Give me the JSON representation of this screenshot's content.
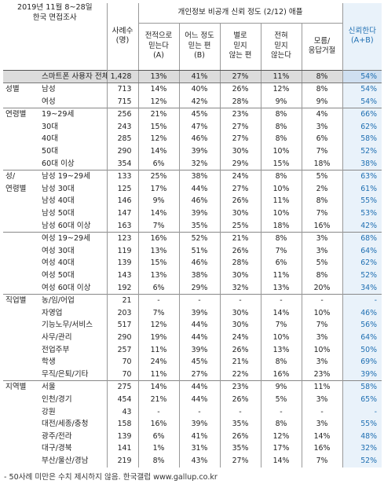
{
  "header": {
    "survey_line1": "2019년 11월 8~28일",
    "survey_line2": "한국 면접조사",
    "n_label_1": "사례수",
    "n_label_2": "(명)",
    "question": "개인정보 비공개 신뢰 정도 (2/12) 애플",
    "col_a": [
      "전적으로",
      "믿는다",
      "(A)"
    ],
    "col_b": [
      "어느 정도",
      "믿는 편",
      "(B)"
    ],
    "col_c": [
      "별로",
      "믿지",
      "않는 편"
    ],
    "col_d": [
      "전혀",
      "믿지",
      "않는다"
    ],
    "col_e": [
      "모름/",
      "응답거절"
    ],
    "col_trust": [
      "신뢰한다",
      "(A+B)"
    ]
  },
  "rows": [
    {
      "g": "",
      "l": "스마트폰 사용자 전체",
      "n": "1,428",
      "a": "13%",
      "b": "41%",
      "c": "27%",
      "d": "11%",
      "e": "8%",
      "t": "54%",
      "cls": "total"
    },
    {
      "g": "성별",
      "l": "남성",
      "n": "713",
      "a": "14%",
      "b": "40%",
      "c": "26%",
      "d": "12%",
      "e": "8%",
      "t": "54%",
      "cls": "sec"
    },
    {
      "g": "",
      "l": "여성",
      "n": "715",
      "a": "12%",
      "b": "42%",
      "c": "28%",
      "d": "9%",
      "e": "9%",
      "t": "54%",
      "cls": ""
    },
    {
      "g": "연령별",
      "l": "19~29세",
      "n": "256",
      "a": "21%",
      "b": "45%",
      "c": "23%",
      "d": "8%",
      "e": "4%",
      "t": "66%",
      "cls": "sec"
    },
    {
      "g": "",
      "l": "30대",
      "n": "243",
      "a": "15%",
      "b": "47%",
      "c": "27%",
      "d": "8%",
      "e": "3%",
      "t": "62%",
      "cls": ""
    },
    {
      "g": "",
      "l": "40대",
      "n": "285",
      "a": "12%",
      "b": "46%",
      "c": "27%",
      "d": "8%",
      "e": "6%",
      "t": "58%",
      "cls": ""
    },
    {
      "g": "",
      "l": "50대",
      "n": "290",
      "a": "14%",
      "b": "39%",
      "c": "30%",
      "d": "10%",
      "e": "7%",
      "t": "52%",
      "cls": ""
    },
    {
      "g": "",
      "l": "60대 이상",
      "n": "354",
      "a": "6%",
      "b": "32%",
      "c": "29%",
      "d": "15%",
      "e": "18%",
      "t": "38%",
      "cls": ""
    },
    {
      "g": "성/",
      "l": "남성 19~29세",
      "n": "133",
      "a": "25%",
      "b": "38%",
      "c": "24%",
      "d": "8%",
      "e": "5%",
      "t": "63%",
      "cls": "sec"
    },
    {
      "g": "연령별",
      "l": "남성 30대",
      "n": "125",
      "a": "17%",
      "b": "44%",
      "c": "27%",
      "d": "10%",
      "e": "2%",
      "t": "61%",
      "cls": ""
    },
    {
      "g": "",
      "l": "남성 40대",
      "n": "146",
      "a": "9%",
      "b": "46%",
      "c": "26%",
      "d": "11%",
      "e": "8%",
      "t": "55%",
      "cls": ""
    },
    {
      "g": "",
      "l": "남성 50대",
      "n": "147",
      "a": "14%",
      "b": "39%",
      "c": "30%",
      "d": "10%",
      "e": "7%",
      "t": "53%",
      "cls": ""
    },
    {
      "g": "",
      "l": "남성 60대 이상",
      "n": "163",
      "a": "7%",
      "b": "35%",
      "c": "25%",
      "d": "18%",
      "e": "16%",
      "t": "42%",
      "cls": ""
    },
    {
      "g": "",
      "l": "여성 19~29세",
      "n": "123",
      "a": "16%",
      "b": "52%",
      "c": "21%",
      "d": "8%",
      "e": "3%",
      "t": "68%",
      "cls": "sec"
    },
    {
      "g": "",
      "l": "여성 30대",
      "n": "119",
      "a": "13%",
      "b": "51%",
      "c": "26%",
      "d": "7%",
      "e": "3%",
      "t": "64%",
      "cls": ""
    },
    {
      "g": "",
      "l": "여성 40대",
      "n": "139",
      "a": "15%",
      "b": "46%",
      "c": "28%",
      "d": "6%",
      "e": "5%",
      "t": "62%",
      "cls": ""
    },
    {
      "g": "",
      "l": "여성 50대",
      "n": "143",
      "a": "13%",
      "b": "38%",
      "c": "30%",
      "d": "11%",
      "e": "8%",
      "t": "52%",
      "cls": ""
    },
    {
      "g": "",
      "l": "여성 60대 이상",
      "n": "192",
      "a": "6%",
      "b": "29%",
      "c": "32%",
      "d": "13%",
      "e": "20%",
      "t": "34%",
      "cls": ""
    },
    {
      "g": "직업별",
      "l": "농/임/어업",
      "n": "21",
      "a": "-",
      "b": "-",
      "c": "-",
      "d": "-",
      "e": "-",
      "t": "-",
      "cls": "sec"
    },
    {
      "g": "",
      "l": "자영업",
      "n": "203",
      "a": "7%",
      "b": "39%",
      "c": "30%",
      "d": "14%",
      "e": "10%",
      "t": "46%",
      "cls": ""
    },
    {
      "g": "",
      "l": "기능노무/서비스",
      "n": "517",
      "a": "12%",
      "b": "44%",
      "c": "30%",
      "d": "7%",
      "e": "7%",
      "t": "56%",
      "cls": ""
    },
    {
      "g": "",
      "l": "사무/관리",
      "n": "290",
      "a": "19%",
      "b": "44%",
      "c": "24%",
      "d": "10%",
      "e": "3%",
      "t": "64%",
      "cls": ""
    },
    {
      "g": "",
      "l": "전업주부",
      "n": "257",
      "a": "11%",
      "b": "39%",
      "c": "26%",
      "d": "13%",
      "e": "10%",
      "t": "50%",
      "cls": ""
    },
    {
      "g": "",
      "l": "학생",
      "n": "70",
      "a": "24%",
      "b": "45%",
      "c": "21%",
      "d": "8%",
      "e": "3%",
      "t": "69%",
      "cls": ""
    },
    {
      "g": "",
      "l": "무직/은퇴/기타",
      "n": "70",
      "a": "11%",
      "b": "27%",
      "c": "22%",
      "d": "16%",
      "e": "23%",
      "t": "39%",
      "cls": ""
    },
    {
      "g": "지역별",
      "l": "서울",
      "n": "275",
      "a": "14%",
      "b": "44%",
      "c": "23%",
      "d": "9%",
      "e": "11%",
      "t": "58%",
      "cls": "sec"
    },
    {
      "g": "",
      "l": "인천/경기",
      "n": "454",
      "a": "21%",
      "b": "44%",
      "c": "26%",
      "d": "5%",
      "e": "3%",
      "t": "65%",
      "cls": ""
    },
    {
      "g": "",
      "l": "강원",
      "n": "43",
      "a": "-",
      "b": "-",
      "c": "-",
      "d": "-",
      "e": "-",
      "t": "-",
      "cls": ""
    },
    {
      "g": "",
      "l": "대전/세종/충청",
      "n": "158",
      "a": "16%",
      "b": "39%",
      "c": "35%",
      "d": "8%",
      "e": "3%",
      "t": "55%",
      "cls": ""
    },
    {
      "g": "",
      "l": "광주/전라",
      "n": "139",
      "a": "6%",
      "b": "41%",
      "c": "26%",
      "d": "12%",
      "e": "14%",
      "t": "48%",
      "cls": ""
    },
    {
      "g": "",
      "l": "대구/경북",
      "n": "141",
      "a": "1%",
      "b": "31%",
      "c": "35%",
      "d": "17%",
      "e": "16%",
      "t": "32%",
      "cls": ""
    },
    {
      "g": "",
      "l": "부산/울산/경남",
      "n": "219",
      "a": "8%",
      "b": "43%",
      "c": "27%",
      "d": "14%",
      "e": "7%",
      "t": "52%",
      "cls": ""
    }
  ],
  "footnote": "- 50사례 미만은 수치 제시하지 않음. 한국갤럽 www.gallup.co.kr"
}
